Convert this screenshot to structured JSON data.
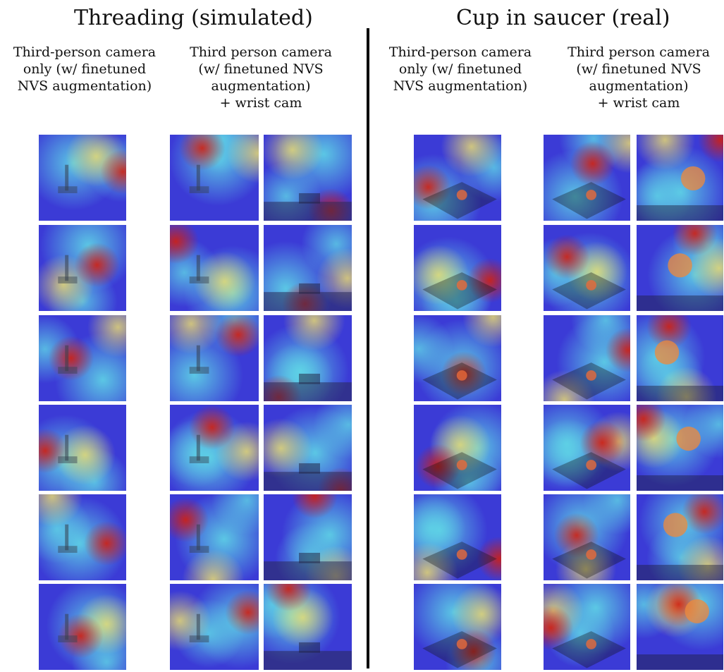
{
  "panels": [
    {
      "title": "Threading (simulated)",
      "col1_header": [
        "Third-person camera",
        "only (w/ finetuned",
        "NVS augmentation)"
      ],
      "col2_header": [
        "Third person camera",
        "(w/ finetuned NVS",
        "augmentation)",
        "+ wrist cam"
      ]
    },
    {
      "title": "Cup in saucer (real)",
      "col1_header": [
        "Third-person camera",
        "only (w/ finetuned",
        "NVS augmentation)"
      ],
      "col2_header": [
        "Third person camera",
        "(w/ finetuned NVS",
        "augmentation)",
        "+ wrist cam"
      ]
    }
  ],
  "image_description_rows": 6,
  "colors": {
    "heat_low": "#3b3bd6",
    "heat_mid": "#5fd6e6",
    "heat_warm": "#f2e36b",
    "heat_high": "#d11f10"
  }
}
